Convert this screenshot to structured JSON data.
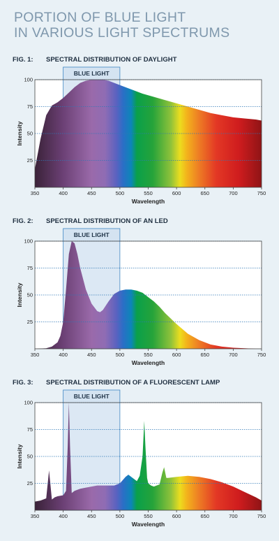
{
  "title": {
    "line1": "PORTION OF BLUE LIGHT",
    "line2": "IN VARIOUS LIGHT SPECTRUMS"
  },
  "figures": [
    {
      "label": "FIG. 1:",
      "caption": "SPECTRAL DISTRIBUTION OF DAYLIGHT"
    },
    {
      "label": "FIG. 2:",
      "caption": "SPECTRAL DISTRIBUTION OF AN LED"
    },
    {
      "label": "FIG. 3:",
      "caption": "SPECTRAL DISTRIBUTION OF A FLUORESCENT LAMP"
    }
  ],
  "chart_data": [
    {
      "type": "area",
      "title": "SPECTRAL DISTRIBUTION OF DAYLIGHT",
      "xlabel": "Wavelength",
      "ylabel": "Intensity",
      "xlim": [
        350,
        750
      ],
      "ylim": [
        0,
        100
      ],
      "xticks": [
        350,
        400,
        450,
        500,
        550,
        600,
        650,
        700,
        750
      ],
      "yticks": [
        25,
        50,
        75,
        100
      ],
      "highlight": {
        "label": "BLUE LIGHT",
        "range": [
          400,
          500
        ]
      },
      "series": [
        {
          "x": [
            350,
            360,
            370,
            380,
            390,
            400,
            410,
            420,
            430,
            440,
            450,
            460,
            470,
            480,
            490,
            500,
            520,
            540,
            560,
            580,
            600,
            620,
            640,
            660,
            680,
            700,
            720,
            740,
            750
          ],
          "y": [
            17,
            45,
            67,
            76,
            79,
            83,
            88,
            93,
            97,
            99,
            100,
            100,
            100,
            99,
            97,
            95,
            91,
            87,
            84,
            81,
            78,
            75,
            72,
            69,
            67,
            65,
            64,
            63,
            62
          ]
        }
      ]
    },
    {
      "type": "area",
      "title": "SPECTRAL DISTRIBUTION OF AN LED",
      "xlabel": "Wavelength",
      "ylabel": "Intensity",
      "xlim": [
        350,
        750
      ],
      "ylim": [
        0,
        100
      ],
      "xticks": [
        350,
        400,
        450,
        500,
        550,
        600,
        650,
        700,
        750
      ],
      "yticks": [
        25,
        50,
        75,
        100
      ],
      "highlight": {
        "label": "BLUE LIGHT",
        "range": [
          400,
          500
        ]
      },
      "series": [
        {
          "x": [
            350,
            370,
            380,
            390,
            395,
            400,
            405,
            410,
            415,
            420,
            425,
            430,
            440,
            450,
            460,
            465,
            470,
            480,
            490,
            500,
            510,
            520,
            530,
            540,
            550,
            560,
            570,
            580,
            600,
            620,
            640,
            660,
            680,
            700,
            720,
            740,
            750
          ],
          "y": [
            0,
            0.5,
            2,
            6,
            12,
            25,
            55,
            88,
            100,
            98,
            88,
            75,
            55,
            42,
            35,
            34,
            36,
            44,
            51,
            54,
            55,
            55,
            54,
            52,
            48,
            44,
            39,
            33,
            23,
            14,
            8,
            4,
            2,
            1,
            0.5,
            0,
            0
          ]
        }
      ]
    },
    {
      "type": "area",
      "title": "SPECTRAL DISTRIBUTION OF A FLUORESCENT LAMP",
      "xlabel": "Wavelength",
      "ylabel": "Intensity",
      "xlim": [
        350,
        750
      ],
      "ylim": [
        0,
        100
      ],
      "xticks": [
        350,
        400,
        450,
        500,
        550,
        600,
        650,
        700,
        750
      ],
      "yticks": [
        25,
        50,
        75,
        100
      ],
      "highlight": {
        "label": "BLUE LIGHT",
        "range": [
          400,
          500
        ]
      },
      "series": [
        {
          "x": [
            350,
            360,
            370,
            375,
            380,
            385,
            390,
            400,
            405,
            408,
            410,
            412,
            415,
            420,
            430,
            440,
            450,
            460,
            470,
            480,
            490,
            500,
            505,
            510,
            515,
            520,
            530,
            535,
            540,
            543,
            545,
            548,
            550,
            555,
            560,
            570,
            575,
            578,
            580,
            582,
            585,
            600,
            620,
            640,
            660,
            680,
            700,
            720,
            740,
            750
          ],
          "y": [
            8,
            9,
            11,
            37,
            10,
            12,
            13,
            14,
            18,
            60,
            100,
            60,
            16,
            18,
            20,
            21,
            22,
            23,
            23,
            23,
            23,
            25,
            28,
            31,
            33,
            31,
            27,
            32,
            50,
            83,
            60,
            30,
            25,
            23,
            22,
            24,
            35,
            40,
            35,
            30,
            30,
            31,
            32,
            31,
            29,
            26,
            22,
            17,
            12,
            9
          ]
        }
      ]
    }
  ]
}
